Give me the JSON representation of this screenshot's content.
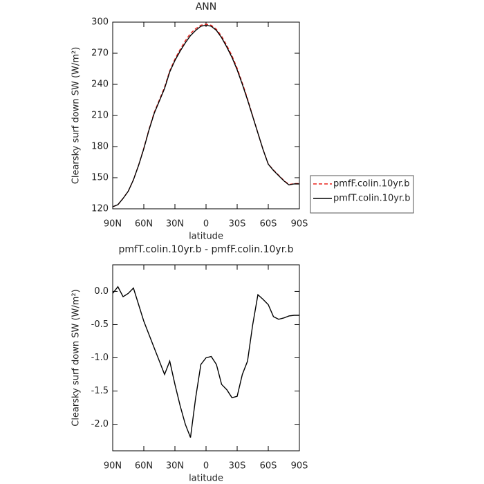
{
  "chart_data": [
    {
      "type": "line",
      "title": "ANN",
      "x_label": "latitude",
      "y_label": "Clearsky surf down SW (W/m²)",
      "x": [
        90,
        85,
        80,
        75,
        70,
        65,
        60,
        55,
        50,
        45,
        40,
        35,
        30,
        25,
        20,
        15,
        10,
        5,
        0,
        -5,
        -10,
        -15,
        -20,
        -25,
        -30,
        -35,
        -40,
        -45,
        -50,
        -55,
        -60,
        -65,
        -70,
        -75,
        -80,
        -85,
        -90
      ],
      "series": [
        {
          "name": "pmfF.colin.10yr.b",
          "color": "#e8201a",
          "dash": "dashed",
          "values": [
            122.0,
            123.9,
            130.1,
            137.0,
            148.0,
            162.2,
            178.5,
            196.7,
            212.9,
            225.1,
            237.3,
            253.1,
            264.4,
            273.7,
            282.0,
            289.2,
            293.6,
            297.1,
            298.0,
            297.0,
            293.1,
            286.4,
            277.5,
            267.6,
            255.6,
            241.3,
            226.1,
            209.5,
            193.1,
            177.1,
            163.2,
            157.4,
            152.4,
            147.4,
            143.4,
            144.4,
            144.4
          ]
        },
        {
          "name": "pmfT.colin.10yr.b",
          "color": "#000000",
          "dash": "solid",
          "values": [
            122,
            124,
            130,
            137,
            148,
            162,
            178,
            196,
            212,
            224,
            236,
            252,
            263,
            272,
            280,
            287,
            292,
            296,
            297,
            296,
            292,
            285,
            276,
            266,
            254,
            240,
            225,
            209,
            193,
            177,
            163,
            157,
            152,
            147,
            143,
            144,
            144
          ]
        }
      ],
      "xlim": [
        90,
        -90
      ],
      "xticks": [
        {
          "value": 90,
          "label": "90N"
        },
        {
          "value": 60,
          "label": "60N"
        },
        {
          "value": 30,
          "label": "30N"
        },
        0,
        {
          "value": -30,
          "label": "30S"
        },
        {
          "value": -60,
          "label": "60S"
        },
        {
          "value": -90,
          "label": "90S"
        }
      ],
      "ylim": [
        120,
        300
      ],
      "yticks": [
        120,
        150,
        180,
        210,
        240,
        270,
        300
      ],
      "legend": "right"
    },
    {
      "type": "line",
      "title": "pmfT.colin.10yr.b - pmfF.colin.10yr.b",
      "x_label": "latitude",
      "y_label": "Clearsky surf down SW (W/m²)",
      "x": [
        90,
        85,
        80,
        75,
        70,
        65,
        60,
        55,
        50,
        45,
        40,
        35,
        30,
        25,
        20,
        15,
        10,
        5,
        0,
        -5,
        -10,
        -15,
        -20,
        -25,
        -30,
        -35,
        -40,
        -45,
        -50,
        -55,
        -60,
        -65,
        -70,
        -75,
        -80,
        -85,
        -90
      ],
      "color": "#000000",
      "values": [
        -0.03,
        0.07,
        -0.08,
        -0.03,
        0.05,
        -0.2,
        -0.45,
        -0.65,
        -0.85,
        -1.05,
        -1.25,
        -1.05,
        -1.4,
        -1.72,
        -2.0,
        -2.2,
        -1.6,
        -1.1,
        -1.0,
        -0.98,
        -1.1,
        -1.4,
        -1.48,
        -1.6,
        -1.58,
        -1.25,
        -1.05,
        -0.5,
        -0.05,
        -0.12,
        -0.2,
        -0.38,
        -0.42,
        -0.4,
        -0.37,
        -0.36,
        -0.36
      ],
      "xlim": [
        90,
        -90
      ],
      "xticks": [
        {
          "value": 90,
          "label": "90N"
        },
        {
          "value": 60,
          "label": "60N"
        },
        {
          "value": 30,
          "label": "30N"
        },
        0,
        {
          "value": -30,
          "label": "30S"
        },
        {
          "value": -60,
          "label": "60S"
        },
        {
          "value": -90,
          "label": "90S"
        }
      ],
      "ylim": [
        -2.4,
        0.4
      ],
      "yticks": [
        {
          "value": -2,
          "label": "-2.0"
        },
        {
          "value": -1.5,
          "label": "-1.5"
        },
        {
          "value": -1,
          "label": "-1.0"
        },
        {
          "value": -0.5,
          "label": "-0.5"
        },
        {
          "value": 0,
          "label": "0.0"
        }
      ]
    }
  ]
}
